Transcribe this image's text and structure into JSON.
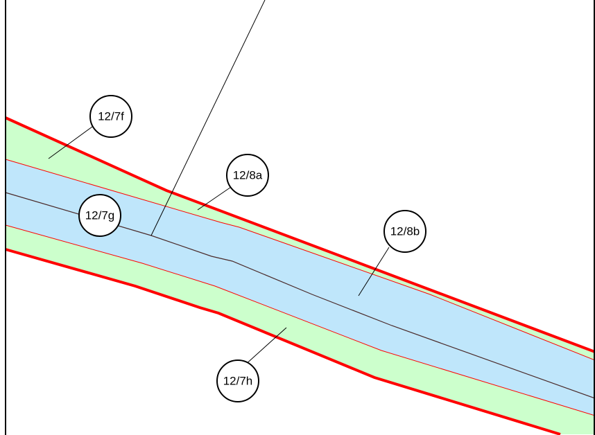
{
  "map": {
    "colors": {
      "background": "#ffffff",
      "frame": "#000000",
      "verge_fill": "#ccffcc",
      "carriageway_fill": "#bfe6fb",
      "outer_boundary": "#ff0000",
      "inner_boundary": "#ff0000",
      "centerline": "#4a2a2a",
      "leader_line": "#000000"
    },
    "labels": [
      {
        "id": "12-7f",
        "text": "12/7f"
      },
      {
        "id": "12-8a",
        "text": "12/8a"
      },
      {
        "id": "12-7g",
        "text": "12/7g"
      },
      {
        "id": "12-8b",
        "text": "12/8b"
      },
      {
        "id": "12-7h",
        "text": "12/7h"
      }
    ]
  }
}
